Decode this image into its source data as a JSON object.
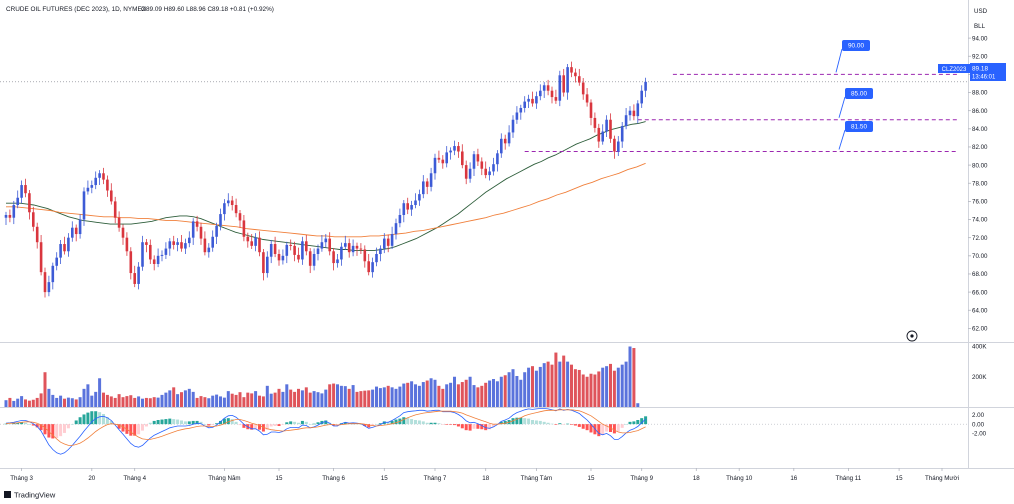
{
  "header": {
    "instrument": "CRUDE OIL FUTURES (DEC 2023), 1D, NYMEX",
    "ohlc": "O89.09  H89.60  L88.96  C89.18  +0.81 (+0.92%)"
  },
  "currency": {
    "line1": "USD",
    "line2": "BLL"
  },
  "price_badge": {
    "symbol": "CLZ2023",
    "price": "89.18",
    "countdown": "13:46:01"
  },
  "footer": {
    "brand": "TradingView"
  },
  "colors": {
    "up": "#3d5bd6",
    "down": "#d9363e",
    "ma_fast": "#2e5e3b",
    "ma_slow": "#f0803c",
    "level": "#9c27b0",
    "label_bg": "#2962ff",
    "macd_line": "#2962ff",
    "signal_line": "#f0803c",
    "hist_pos_strong": "#26a69a",
    "hist_pos_weak": "#b2dfdb",
    "hist_neg_strong": "#ff5252",
    "hist_neg_weak": "#ffcdd2"
  },
  "chart_data": {
    "type": "candlestick",
    "symbol": "CLZ2023",
    "price_axis": {
      "ylim": [
        60.5,
        98.2
      ],
      "ticks": [
        "62.00",
        "64.00",
        "66.00",
        "68.00",
        "70.00",
        "72.00",
        "74.00",
        "76.00",
        "78.00",
        "80.00",
        "82.00",
        "84.00",
        "86.00",
        "88.00",
        "90.00",
        "92.00",
        "94.00"
      ]
    },
    "volume_axis": {
      "ylim": [
        0,
        410000
      ],
      "ticks": [
        {
          "v": 200000,
          "label": "200K"
        },
        {
          "v": 400000,
          "label": "400K"
        }
      ]
    },
    "macd_axis": {
      "ylim": [
        -9.5,
        3.5
      ],
      "ticks": [
        {
          "v": 2,
          "label": "2.00"
        },
        {
          "v": 0,
          "label": "0.00"
        },
        {
          "v": -2,
          "label": "-2.00"
        }
      ]
    },
    "time_axis": {
      "total_slots": 232,
      "labels": [
        {
          "i": 4,
          "label": "Tháng 3"
        },
        {
          "i": 22,
          "label": "20"
        },
        {
          "i": 33,
          "label": "Tháng 4"
        },
        {
          "i": 56,
          "label": "Tháng Năm"
        },
        {
          "i": 70,
          "label": "15"
        },
        {
          "i": 84,
          "label": "Tháng 6"
        },
        {
          "i": 97,
          "label": "15"
        },
        {
          "i": 110,
          "label": "Tháng 7"
        },
        {
          "i": 123,
          "label": "18"
        },
        {
          "i": 136,
          "label": "Tháng Tám"
        },
        {
          "i": 150,
          "label": "15"
        },
        {
          "i": 163,
          "label": "Tháng 9"
        },
        {
          "i": 177,
          "label": "18"
        },
        {
          "i": 188,
          "label": "Tháng 10"
        },
        {
          "i": 202,
          "label": "16"
        },
        {
          "i": 216,
          "label": "Tháng 11"
        },
        {
          "i": 229,
          "label": "15"
        },
        {
          "i": 240,
          "label": "Tháng Mười"
        }
      ]
    },
    "close": [
      74.5,
      74.2,
      75.6,
      76.4,
      77.8,
      76.9,
      74.8,
      73.2,
      71.5,
      68.2,
      66.0,
      67.1,
      68.9,
      69.8,
      71.3,
      70.5,
      72.0,
      73.1,
      72.4,
      74.0,
      77.1,
      77.5,
      77.8,
      78.6,
      79.1,
      78.4,
      77.2,
      76.0,
      74.2,
      73.1,
      72.0,
      70.5,
      68.1,
      66.9,
      68.8,
      71.5,
      71.2,
      69.6,
      69.1,
      70.0,
      70.1,
      70.8,
      71.6,
      71.2,
      71.5,
      70.8,
      71.4,
      72.0,
      73.8,
      73.2,
      71.9,
      70.4,
      70.9,
      72.1,
      73.3,
      74.6,
      75.8,
      76.1,
      75.6,
      74.7,
      73.9,
      72.1,
      71.6,
      71.1,
      72.0,
      70.4,
      68.1,
      69.9,
      71.3,
      70.2,
      69.5,
      70.0,
      71.2,
      71.1,
      70.1,
      69.6,
      71.6,
      70.5,
      68.9,
      70.2,
      70.8,
      71.5,
      71.9,
      70.5,
      69.2,
      69.6,
      71.0,
      71.4,
      70.4,
      71.1,
      70.8,
      70.7,
      69.4,
      68.2,
      69.3,
      70.2,
      70.8,
      71.9,
      71.1,
      72.4,
      73.6,
      74.5,
      75.8,
      75.1,
      75.6,
      76.1,
      76.8,
      78.2,
      77.6,
      79.1,
      80.8,
      80.6,
      80.2,
      81.4,
      81.6,
      82.1,
      81.5,
      80.0,
      78.5,
      79.6,
      81.2,
      80.4,
      79.6,
      78.9,
      79.3,
      80.1,
      81.3,
      82.9,
      82.4,
      83.6,
      85.0,
      85.8,
      86.3,
      87.0,
      87.3,
      86.8,
      87.6,
      88.2,
      88.8,
      88.2,
      87.5,
      87.1,
      89.9,
      88.0,
      90.8,
      90.2,
      89.8,
      89.1,
      87.8,
      86.9,
      85.2,
      84.1,
      82.6,
      83.7,
      85.0,
      82.9,
      81.5,
      82.6,
      84.3,
      85.5,
      86.0,
      85.4,
      86.8,
      88.2,
      89.18
    ],
    "series": [
      {
        "name": "",
        "description": "moving-average-fast",
        "start": 0,
        "values": [
          75.8,
          75.8,
          75.8,
          75.7,
          75.6,
          75.4,
          75.2,
          74.9,
          74.6,
          74.3,
          74.1,
          73.9,
          73.8,
          73.7,
          73.6,
          73.5,
          73.5,
          73.5,
          73.5,
          73.6,
          73.7,
          73.8,
          74.0,
          74.2,
          74.3,
          74.4,
          74.4,
          74.3,
          74.1,
          73.8,
          73.5,
          73.2,
          72.9,
          72.6,
          72.4,
          72.2,
          72.0,
          71.8,
          71.7,
          71.6,
          71.5,
          71.4,
          71.3,
          71.2,
          71.1,
          71.0,
          70.9,
          70.8,
          70.7,
          70.7,
          70.6,
          70.6,
          70.6,
          70.6,
          70.7,
          70.8,
          71.0,
          71.3,
          71.6,
          71.9,
          72.3,
          72.7,
          73.1,
          73.6,
          74.1,
          74.6,
          75.2,
          75.8,
          76.4,
          77.0,
          77.5,
          78.0,
          78.5,
          78.9,
          79.3,
          79.7,
          80.1,
          80.4,
          80.8,
          81.1,
          81.5,
          81.9,
          82.3,
          82.6,
          82.9,
          83.3,
          83.6,
          83.9,
          84.1,
          84.3,
          84.5,
          84.6,
          84.8
        ]
      },
      {
        "name": "",
        "description": "moving-average-slow",
        "start": 0,
        "values": [
          75.4,
          75.4,
          75.3,
          75.2,
          75.1,
          75.0,
          74.8,
          74.7,
          74.6,
          74.5,
          74.4,
          74.3,
          74.3,
          74.2,
          74.2,
          74.1,
          74.1,
          74.0,
          73.9,
          73.9,
          73.8,
          73.7,
          73.6,
          73.5,
          73.4,
          73.3,
          73.2,
          73.0,
          72.9,
          72.8,
          72.7,
          72.6,
          72.5,
          72.4,
          72.3,
          72.2,
          72.2,
          72.1,
          72.1,
          72.1,
          72.1,
          72.2,
          72.2,
          72.3,
          72.4,
          72.5,
          72.7,
          72.8,
          73.0,
          73.2,
          73.4,
          73.6,
          73.8,
          74.0,
          74.2,
          74.5,
          74.7,
          75.0,
          75.3,
          75.6,
          76.0,
          76.3,
          76.7,
          77.0,
          77.4,
          77.8,
          78.1,
          78.5,
          78.8,
          79.1,
          79.5,
          79.8,
          80.2
        ]
      },
      {
        "name": "",
        "description": "volume-bars",
        "start": 0,
        "values": [
          45000,
          60000,
          40000,
          55000,
          72000,
          50000,
          42000,
          48000,
          60000,
          90000,
          230000,
          120000,
          80000,
          60000,
          75000,
          55000,
          62000,
          58000,
          50000,
          65000,
          120000,
          150000,
          75000,
          100000,
          190000,
          95000,
          80000,
          70000,
          60000,
          85000,
          65000,
          72000,
          78000,
          60000,
          70000,
          55000,
          60000,
          58000,
          65000,
          62000,
          80000,
          95000,
          110000,
          130000,
          85000,
          98000,
          110000,
          120000,
          100000,
          60000,
          72000,
          65000,
          58000,
          75000,
          82000,
          70000,
          62000,
          105000,
          88000,
          80000,
          98000,
          65000,
          95000,
          90000,
          105000,
          75000,
          70000,
          140000,
          88000,
          95000,
          120000,
          100000,
          150000,
          115000,
          100000,
          120000,
          110000,
          130000,
          95000,
          105000,
          98000,
          90000,
          115000,
          150000,
          155000,
          150000,
          140000,
          138000,
          120000,
          145000,
          100000,
          105000,
          108000,
          110000,
          115000,
          135000,
          125000,
          130000,
          140000,
          130000,
          120000,
          135000,
          155000,
          160000,
          170000,
          150000,
          140000,
          165000,
          175000,
          190000,
          180000,
          140000,
          120000,
          150000,
          160000,
          200000,
          150000,
          165000,
          180000,
          200000,
          145000,
          130000,
          140000,
          160000,
          175000,
          185000,
          170000,
          200000,
          210000,
          230000,
          250000,
          205000,
          180000,
          230000,
          260000,
          270000,
          240000,
          265000,
          290000,
          300000,
          280000,
          360000,
          300000,
          340000,
          300000,
          280000,
          250000,
          245000,
          215000,
          200000,
          220000,
          215000,
          235000,
          260000,
          270000,
          285000,
          240000,
          260000,
          280000,
          300000,
          400000,
          390000,
          25000
        ]
      },
      {
        "name": "",
        "description": "macd-line",
        "start": 0,
        "values": [
          0.2,
          0.3,
          0.4,
          0.6,
          0.8,
          0.8,
          0.5,
          0.1,
          -0.5,
          -1.5,
          -3.0,
          -4.5,
          -5.5,
          -6.2,
          -6.5,
          -6.2,
          -5.5,
          -4.6,
          -3.6,
          -2.6,
          -1.5,
          -0.5,
          0.5,
          1.2,
          1.6,
          1.7,
          1.4,
          0.8,
          -0.2,
          -1.2,
          -2.2,
          -3.2,
          -4.2,
          -4.8,
          -5.0,
          -4.6,
          -3.8,
          -3.0,
          -2.4,
          -2.0,
          -1.6,
          -1.2,
          -0.8,
          -0.6,
          -0.4,
          -0.4,
          -0.4,
          -0.3,
          0.0,
          0.2,
          0.1,
          -0.4,
          -0.8,
          -0.7,
          -0.2,
          0.5,
          1.3,
          1.8,
          1.9,
          1.5,
          0.8,
          0.0,
          -0.6,
          -1.0,
          -1.0,
          -1.5,
          -2.3,
          -2.2,
          -1.7,
          -1.7,
          -1.8,
          -1.6,
          -1.0,
          -0.7,
          -0.7,
          -0.8,
          -0.2,
          -0.3,
          -0.8,
          -0.6,
          -0.2,
          0.3,
          0.6,
          0.2,
          -0.4,
          -0.4,
          0.1,
          0.4,
          0.2,
          0.3,
          0.2,
          0.1,
          -0.4,
          -0.9,
          -0.7,
          -0.4,
          -0.1,
          0.4,
          0.4,
          0.8,
          1.3,
          1.8,
          2.5,
          2.7,
          2.8,
          2.9,
          3.0,
          3.0,
          2.8,
          2.9,
          3.0,
          3.0,
          2.7,
          2.7,
          2.7,
          2.5,
          2.1,
          1.5,
          0.7,
          0.3,
          0.4,
          0.1,
          -0.3,
          -0.8,
          -0.9,
          -0.6,
          -0.1,
          0.6,
          0.9,
          1.3,
          2.0,
          2.5,
          2.8,
          3.1,
          3.3,
          3.2,
          3.3,
          3.4,
          3.4,
          3.3,
          3.1,
          2.9,
          3.3,
          3.0,
          3.2,
          3.0,
          2.7,
          2.3,
          1.6,
          0.9,
          0.0,
          -1.0,
          -2.0,
          -2.3,
          -2.0,
          -2.5,
          -3.3,
          -3.3,
          -2.7,
          -1.9,
          -1.3,
          -1.0,
          -0.5,
          0.3,
          1.1
        ]
      },
      {
        "name": "",
        "description": "signal-line",
        "start": 0,
        "values": [
          0.1,
          0.2,
          0.2,
          0.3,
          0.4,
          0.5,
          0.5,
          0.4,
          0.2,
          -0.2,
          -0.8,
          -1.6,
          -2.4,
          -3.2,
          -3.9,
          -4.3,
          -4.6,
          -4.6,
          -4.4,
          -4.1,
          -3.6,
          -3.0,
          -2.3,
          -1.6,
          -1.0,
          -0.5,
          -0.1,
          0.1,
          0.0,
          -0.2,
          -0.6,
          -1.1,
          -1.7,
          -2.3,
          -2.8,
          -3.2,
          -3.3,
          -3.3,
          -3.1,
          -2.9,
          -2.6,
          -2.3,
          -2.0,
          -1.7,
          -1.4,
          -1.2,
          -1.0,
          -0.9,
          -0.7,
          -0.5,
          -0.4,
          -0.4,
          -0.5,
          -0.5,
          -0.4,
          -0.2,
          0.1,
          0.5,
          0.8,
          1.0,
          1.0,
          0.8,
          0.5,
          0.2,
          0.0,
          -0.3,
          -0.7,
          -1.0,
          -1.2,
          -1.3,
          -1.4,
          -1.5,
          -1.4,
          -1.3,
          -1.2,
          -1.1,
          -0.9,
          -0.8,
          -0.8,
          -0.7,
          -0.6,
          -0.4,
          -0.2,
          -0.1,
          -0.1,
          -0.2,
          -0.1,
          0.0,
          0.1,
          0.1,
          0.1,
          0.1,
          0.0,
          -0.2,
          -0.3,
          -0.4,
          -0.3,
          -0.2,
          -0.1,
          0.1,
          0.3,
          0.6,
          1.0,
          1.4,
          1.7,
          2.0,
          2.2,
          2.4,
          2.5,
          2.6,
          2.7,
          2.8,
          2.8,
          2.8,
          2.8,
          2.7,
          2.6,
          2.4,
          2.0,
          1.7,
          1.4,
          1.1,
          0.8,
          0.5,
          0.2,
          0.0,
          0.0,
          0.1,
          0.2,
          0.4,
          0.7,
          1.1,
          1.4,
          1.8,
          2.1,
          2.3,
          2.5,
          2.7,
          2.9,
          3.0,
          3.0,
          3.0,
          3.1,
          3.1,
          3.1,
          3.1,
          3.0,
          2.9,
          2.6,
          2.2,
          1.8,
          1.2,
          0.6,
          0.0,
          -0.4,
          -0.8,
          -1.3,
          -1.7,
          -1.9,
          -1.9,
          -1.8,
          -1.6,
          -1.4,
          -1.0,
          -0.6
        ]
      }
    ],
    "levels": [
      {
        "price": 90.0,
        "label": "90.00"
      },
      {
        "price": 85.0,
        "label": "85.00"
      },
      {
        "price": 81.5,
        "label": "81.50"
      }
    ],
    "current_price": 89.18,
    "title": "",
    "xlabel": "",
    "ylabel": ""
  }
}
